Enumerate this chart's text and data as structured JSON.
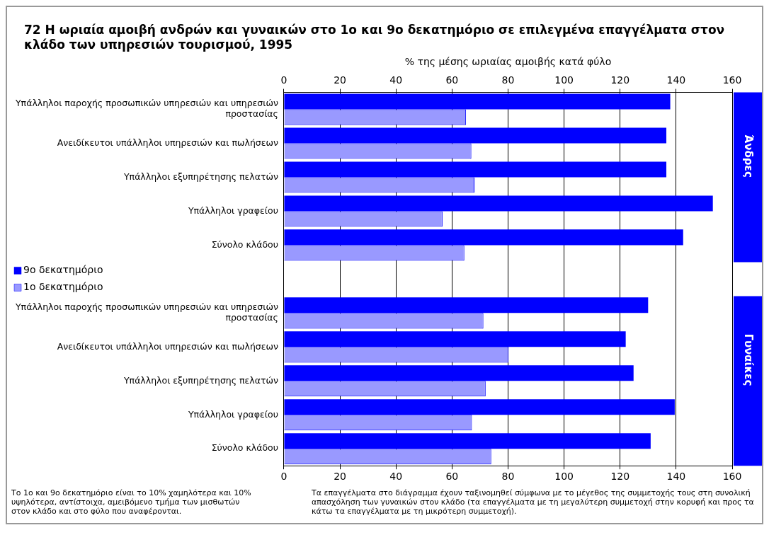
{
  "chart_data": {
    "type": "bar",
    "orientation": "horizontal",
    "title": "72  Η ωριαία αμοιβή ανδρών και γυναικών στο 1ο και 9ο δεκατημόριο σε επιλεγμένα επαγγέλματα στον κλάδο των υπηρεσιών τουρισμού, 1995",
    "x2label": "% της μέσης ωριαίας αμοιβής κατά φύλο",
    "categories": [
      "Υπάλληλοι παροχής προσωπικών υπηρεσιών και υπηρεσιών προστασίας",
      "Ανειδίκευτοι υπάλληλοι υπηρεσιών και πωλήσεων",
      "Υπάλληλοι εξυπηρέτησης πελατών",
      "Υπάλληλοι γραφείου",
      "Σύνολο κλάδου",
      null,
      "Υπάλληλοι παροχής προσωπικών υπηρεσιών και υπηρεσιών προστασίας",
      "Ανειδίκευτοι υπάλληλοι υπηρεσιών και πωλήσεων",
      "Υπάλληλοι εξυπηρέτησης πελατών",
      "Υπάλληλοι γραφείου",
      "Σύνολο κλάδου"
    ],
    "series": [
      {
        "name": "9ο δεκατημόριο",
        "color": "#0000ff",
        "values": [
          137.9,
          136.5,
          136.5,
          153.1,
          142.5,
          null,
          130.0,
          122.0,
          124.8,
          139.5,
          130.9
        ]
      },
      {
        "name": "1ο δεκατημόριο",
        "color": "#9999ff",
        "values": [
          65.0,
          66.9,
          68.0,
          56.6,
          64.4,
          null,
          71.2,
          80.2,
          72.0,
          67.1,
          74.0
        ]
      }
    ],
    "xlim": [
      0,
      160
    ],
    "xticks": [
      0,
      20,
      40,
      60,
      80,
      100,
      120,
      140,
      160
    ],
    "x2lim": [
      0,
      160
    ],
    "x2ticks": [
      0,
      20,
      40,
      60,
      80,
      100,
      120,
      140,
      160
    ],
    "grid": "x",
    "legend": "left",
    "annotations": [
      "Άνδρες",
      "Γυναίκες",
      "Το 1ο και 9ο δεκατημόριο είναι το 10% χαμηλότερα και 10% υψηλότερα, αντίστοιχα, αμειβόμενο τμήμα των μισθωτών στον κλάδο και στο φύλο που αναφέρονται.",
      "Τα επαγγέλματα στο διάγραμμα έχουν ταξινομηθεί σύμφωνα με το μέγεθος της συμμετοχής τους στη συνολική απασχόληση των γυναικών στον κλάδο (τα επαγγέλματα με τη μεγαλύτερη συμμετοχή στην κορυφή και προς τα κάτω τα επαγγέλματα με τη μικρότερη συμμετοχή)."
    ]
  }
}
